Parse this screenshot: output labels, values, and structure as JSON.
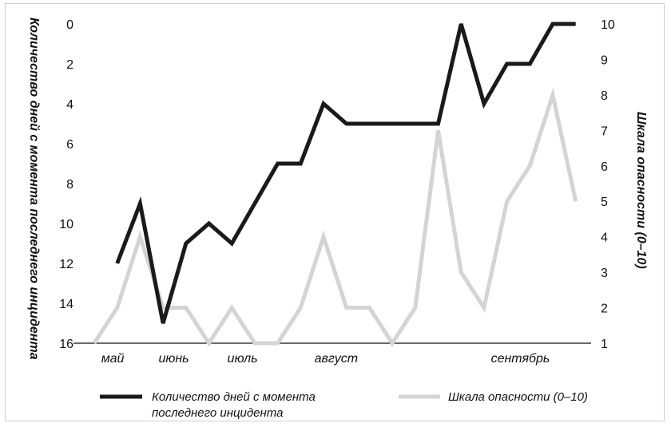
{
  "chart_data": {
    "type": "line",
    "x_categories": [
      "",
      "май",
      "",
      "",
      "июнь",
      "",
      "",
      "июль",
      "",
      "",
      "",
      "",
      "август",
      "",
      "",
      "",
      "",
      "",
      "",
      "",
      "",
      "сентябрь",
      "",
      "",
      "",
      ""
    ],
    "month_labels": [
      "май",
      "июнь",
      "июль",
      "август",
      "сентябрь"
    ],
    "y_left_label": "Количество дней с момента последнего инцидента",
    "y_right_label": "Шкала опасности (0–10)",
    "y_left_ticks": [
      "0",
      "2",
      "4",
      "6",
      "8",
      "10",
      "12",
      "14",
      "16"
    ],
    "y_right_ticks": [
      "10",
      "9",
      "8",
      "7",
      "6",
      "5",
      "4",
      "3",
      "2",
      "1"
    ],
    "y_left_range": [
      0,
      16
    ],
    "y_left_inverted": true,
    "y_right_range": [
      1,
      10
    ],
    "series": [
      {
        "name": "Количество дней с момента последнего инцидента",
        "axis": "left",
        "color": "#1a1a1a",
        "values": [
          12,
          9,
          15,
          11,
          10,
          11,
          9,
          7,
          7,
          4,
          5,
          5,
          5,
          5,
          5,
          0,
          4,
          2,
          2,
          0,
          0
        ]
      },
      {
        "name": "Шкала опасности (0–10)",
        "axis": "right",
        "color": "#d4d4d4",
        "values": [
          1,
          2,
          4,
          2,
          2,
          1,
          2,
          1,
          1,
          2,
          4,
          2,
          2,
          1,
          2,
          7,
          3,
          2,
          5,
          6,
          8,
          5
        ]
      }
    ],
    "legend": {
      "position": "bottom",
      "items": [
        {
          "label_line1": "Количество дней с момента",
          "label_line2": "последнего инцидента",
          "color": "#1a1a1a"
        },
        {
          "label_line1": "Шкала опасности (0–10)",
          "label_line2": "",
          "color": "#d4d4d4"
        }
      ]
    },
    "grid": false
  }
}
